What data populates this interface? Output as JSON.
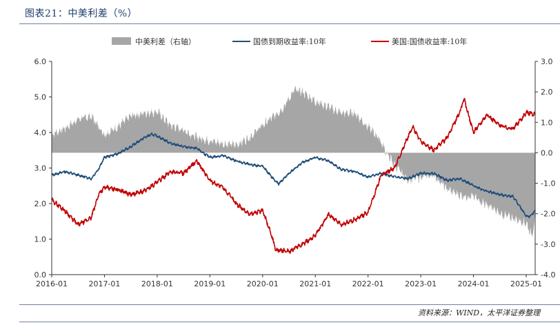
{
  "header": {
    "title": "图表21：中美利差（%）"
  },
  "footer": {
    "source": "资料来源：WIND，太平洋证券整理"
  },
  "chart_data": {
    "type": "line",
    "title": "图表21：中美利差（%）",
    "x_ticks": [
      "2016-01",
      "2017-01",
      "2018-01",
      "2019-01",
      "2020-01",
      "2021-01",
      "2022-01",
      "2023-01",
      "2024-01",
      "2025-01"
    ],
    "x_range": [
      2016.0,
      2025.17
    ],
    "y_left": {
      "range": [
        0.0,
        6.0
      ],
      "ticks": [
        "0.0",
        "1.0",
        "2.0",
        "3.0",
        "4.0",
        "5.0",
        "6.0"
      ]
    },
    "y_right": {
      "range": [
        -4.0,
        3.0
      ],
      "ticks": [
        "-4.0",
        "-3.0",
        "-2.0",
        "-1.0",
        "0.0",
        "1.0",
        "2.0",
        "3.0"
      ]
    },
    "legend_position": "top",
    "grid": false,
    "series": [
      {
        "name": "中美利差（右轴）",
        "axis": "right",
        "kind": "area",
        "color": "#a6a6a6",
        "x": [
          2016.0,
          2016.25,
          2016.5,
          2016.75,
          2017.0,
          2017.25,
          2017.5,
          2017.75,
          2018.0,
          2018.25,
          2018.5,
          2018.75,
          2019.0,
          2019.25,
          2019.5,
          2019.75,
          2020.0,
          2020.25,
          2020.4,
          2020.6,
          2020.75,
          2021.0,
          2021.25,
          2021.5,
          2021.75,
          2022.0,
          2022.2,
          2022.35,
          2022.5,
          2022.75,
          2023.0,
          2023.25,
          2023.5,
          2023.75,
          2024.0,
          2024.25,
          2024.5,
          2024.75,
          2025.0,
          2025.1,
          2025.17
        ],
        "y": [
          0.6,
          0.8,
          1.1,
          1.2,
          0.6,
          0.85,
          1.2,
          1.3,
          1.35,
          0.9,
          0.75,
          0.5,
          0.4,
          0.3,
          0.25,
          0.5,
          0.9,
          1.25,
          1.5,
          2.05,
          2.0,
          1.7,
          1.5,
          1.3,
          1.3,
          0.85,
          0.5,
          0.0,
          -0.4,
          -0.9,
          -0.8,
          -0.75,
          -1.2,
          -1.4,
          -1.45,
          -1.7,
          -2.0,
          -2.15,
          -2.3,
          -2.7,
          -2.2
        ]
      },
      {
        "name": "国债到期收益率:10年",
        "axis": "left",
        "kind": "line",
        "color": "#1f4e79",
        "x": [
          2016.0,
          2016.25,
          2016.5,
          2016.75,
          2016.9,
          2017.0,
          2017.25,
          2017.5,
          2017.75,
          2017.9,
          2018.0,
          2018.25,
          2018.5,
          2018.75,
          2019.0,
          2019.25,
          2019.5,
          2019.75,
          2020.0,
          2020.2,
          2020.3,
          2020.5,
          2020.75,
          2021.0,
          2021.25,
          2021.5,
          2021.75,
          2022.0,
          2022.25,
          2022.5,
          2022.75,
          2023.0,
          2023.25,
          2023.5,
          2023.75,
          2024.0,
          2024.25,
          2024.5,
          2024.75,
          2025.0,
          2025.05,
          2025.17
        ],
        "y": [
          2.8,
          2.9,
          2.8,
          2.7,
          3.0,
          3.3,
          3.4,
          3.6,
          3.85,
          3.95,
          3.9,
          3.7,
          3.6,
          3.55,
          3.3,
          3.35,
          3.2,
          3.1,
          3.05,
          2.7,
          2.55,
          2.85,
          3.15,
          3.3,
          3.2,
          2.95,
          2.9,
          2.75,
          2.85,
          2.75,
          2.7,
          2.85,
          2.85,
          2.65,
          2.7,
          2.5,
          2.35,
          2.25,
          2.2,
          1.65,
          1.62,
          1.78
        ]
      },
      {
        "name": "美国:国债收益率:10年",
        "axis": "left",
        "kind": "line",
        "color": "#c00000",
        "x": [
          2016.0,
          2016.25,
          2016.5,
          2016.75,
          2016.9,
          2017.0,
          2017.25,
          2017.5,
          2017.75,
          2018.0,
          2018.25,
          2018.5,
          2018.75,
          2019.0,
          2019.25,
          2019.5,
          2019.75,
          2020.0,
          2020.15,
          2020.25,
          2020.5,
          2020.75,
          2021.0,
          2021.25,
          2021.5,
          2021.75,
          2022.0,
          2022.25,
          2022.5,
          2022.75,
          2022.85,
          2023.0,
          2023.25,
          2023.5,
          2023.75,
          2023.82,
          2024.0,
          2024.25,
          2024.5,
          2024.75,
          2025.0,
          2025.08,
          2025.17
        ],
        "y": [
          2.1,
          1.8,
          1.4,
          1.6,
          2.3,
          2.45,
          2.4,
          2.25,
          2.35,
          2.6,
          2.9,
          2.85,
          3.2,
          2.65,
          2.45,
          2.0,
          1.7,
          1.8,
          1.2,
          0.7,
          0.65,
          0.85,
          1.1,
          1.7,
          1.4,
          1.55,
          1.75,
          2.8,
          3.0,
          3.85,
          4.15,
          3.75,
          3.5,
          3.85,
          4.6,
          4.95,
          4.0,
          4.5,
          4.2,
          4.1,
          4.55,
          4.55,
          4.5
        ]
      }
    ]
  }
}
